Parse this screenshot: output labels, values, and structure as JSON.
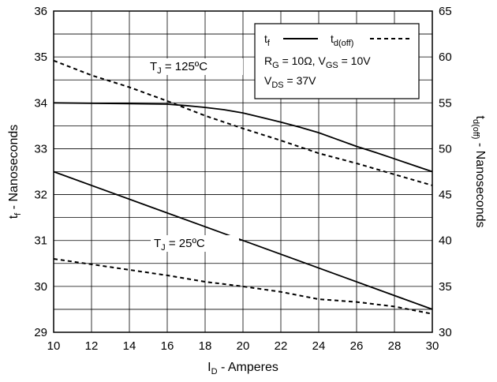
{
  "chart_data": {
    "type": "line",
    "xlabel": {
      "main": "I",
      "sub": "D",
      "rest": " - Amperes"
    },
    "ylabel_left": {
      "main": "t",
      "sub": "f",
      "rest": " - Nanoseconds"
    },
    "ylabel_right": {
      "main": "t",
      "sub": "d(off)",
      "rest": " - Nanoseconds"
    },
    "x": {
      "min": 10,
      "max": 30,
      "ticks": [
        10,
        12,
        14,
        16,
        18,
        20,
        22,
        24,
        26,
        28,
        30
      ]
    },
    "y_left": {
      "min": 29,
      "max": 36,
      "ticks": [
        29,
        30,
        31,
        32,
        33,
        34,
        35,
        36
      ]
    },
    "y_right": {
      "min": 30,
      "max": 65,
      "ticks": [
        30,
        35,
        40,
        45,
        50,
        55,
        60,
        65
      ]
    },
    "grid": true,
    "legend": {
      "placement": "top-right",
      "entries": [
        {
          "main": "t",
          "sub": "f",
          "style": "solid"
        },
        {
          "main": "t",
          "sub": "d(off)",
          "style": "dashed"
        }
      ],
      "conditions": [
        {
          "parts": [
            {
              "t": "R"
            },
            {
              "t": "G",
              "sub": true
            },
            {
              "t": " = 10Ω,  V"
            },
            {
              "t": "GS",
              "sub": true
            },
            {
              "t": " = 10V"
            }
          ]
        },
        {
          "parts": [
            {
              "t": "V"
            },
            {
              "t": "DS",
              "sub": true
            },
            {
              "t": " = 37V"
            }
          ]
        }
      ]
    },
    "annotations": [
      {
        "id": "tj125",
        "main": "T",
        "sub": "J",
        "rest": " = 125ºC"
      },
      {
        "id": "tj25",
        "main": "T",
        "sub": "J",
        "rest": " = 25ºC"
      }
    ],
    "series": [
      {
        "axis": "left",
        "style": "solid",
        "x": [
          10,
          12,
          14,
          16,
          17,
          18,
          19,
          20,
          21,
          22,
          23,
          24,
          25,
          26,
          27,
          28,
          29,
          30
        ],
        "y": [
          34.0,
          33.99,
          33.98,
          33.97,
          33.94,
          33.9,
          33.85,
          33.78,
          33.68,
          33.58,
          33.47,
          33.35,
          33.2,
          33.05,
          32.92,
          32.78,
          32.64,
          32.5
        ]
      },
      {
        "axis": "left",
        "style": "solid",
        "x": [
          10,
          15,
          20,
          25,
          30
        ],
        "y": [
          32.5,
          31.75,
          31.0,
          30.25,
          29.5
        ]
      },
      {
        "axis": "right",
        "style": "dashed",
        "x": [
          10,
          12,
          14,
          16,
          18,
          20,
          22,
          24,
          26,
          28,
          30
        ],
        "y": [
          59.6,
          58.0,
          56.7,
          55.2,
          53.6,
          52.2,
          50.9,
          49.5,
          48.4,
          47.2,
          46.0
        ]
      },
      {
        "axis": "right",
        "style": "dashed",
        "x": [
          10,
          12,
          14,
          16,
          18,
          20,
          22,
          24,
          26,
          28,
          30
        ],
        "y": [
          38.0,
          37.4,
          36.8,
          36.2,
          35.5,
          35.0,
          34.4,
          33.6,
          33.3,
          32.8,
          32.0
        ]
      }
    ]
  }
}
